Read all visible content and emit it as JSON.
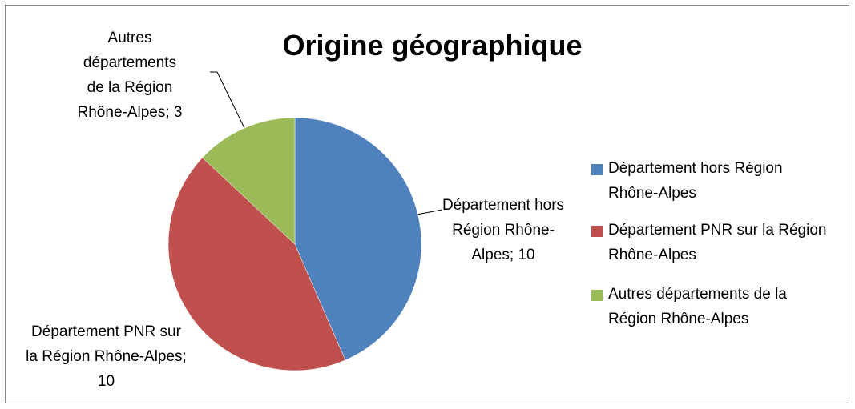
{
  "chart_data": {
    "type": "pie",
    "title": "Origine géographique",
    "categories": [
      "Département hors Région Rhône-Alpes",
      "Département PNR sur la Région Rhône-Alpes",
      "Autres départements de la Région Rhône-Alpes"
    ],
    "values": [
      10,
      10,
      3
    ],
    "value_labels": [
      "Département hors Région Rhône-Alpes; 10",
      "Département PNR sur la Région Rhône-Alpes; 10",
      "Autres départements de la Région Rhône-Alpes; 3"
    ],
    "colors": [
      "#4f81bd",
      "#c0504d",
      "#9bbb59"
    ],
    "legend": "right"
  }
}
